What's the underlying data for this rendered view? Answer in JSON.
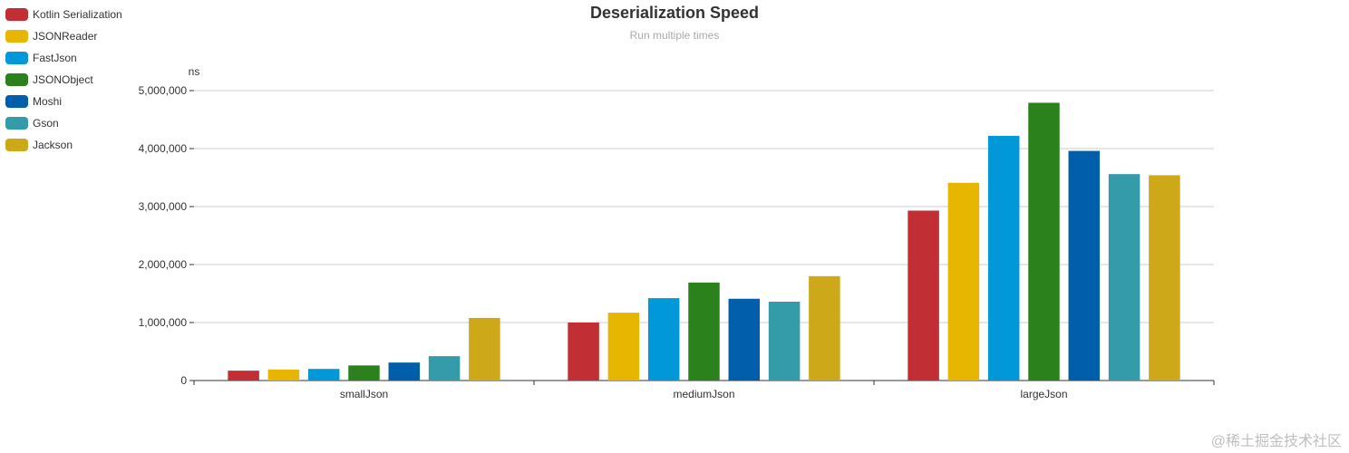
{
  "chart_data": {
    "type": "bar",
    "title": "Deserialization Speed",
    "subtitle": "Run multiple times",
    "ylabel": "ns",
    "xlabel": "",
    "categories": [
      "smallJson",
      "mediumJson",
      "largeJson"
    ],
    "ylim": [
      0,
      5000000
    ],
    "yticks": [
      0,
      1000000,
      2000000,
      3000000,
      4000000,
      5000000
    ],
    "ytick_labels": [
      "0",
      "1,000,000",
      "2,000,000",
      "3,000,000",
      "4,000,000",
      "5,000,000"
    ],
    "grid": true,
    "legend_position": "top-left",
    "series": [
      {
        "name": "Kotlin Serialization",
        "color": "#c12e34",
        "values": [
          170000,
          1000000,
          2930000
        ]
      },
      {
        "name": "JSONReader",
        "color": "#e6b600",
        "values": [
          190000,
          1170000,
          3410000
        ]
      },
      {
        "name": "FastJson",
        "color": "#0098d9",
        "values": [
          200000,
          1420000,
          4220000
        ]
      },
      {
        "name": "JSONObject",
        "color": "#2b821d",
        "values": [
          260000,
          1690000,
          4790000
        ]
      },
      {
        "name": "Moshi",
        "color": "#005eaa",
        "values": [
          310000,
          1410000,
          3960000
        ]
      },
      {
        "name": "Gson",
        "color": "#339ca8",
        "values": [
          420000,
          1360000,
          3560000
        ]
      },
      {
        "name": "Jackson",
        "color": "#cda819",
        "values": [
          1080000,
          1800000,
          3540000
        ]
      }
    ]
  },
  "watermark": "@稀土掘金技术社区"
}
